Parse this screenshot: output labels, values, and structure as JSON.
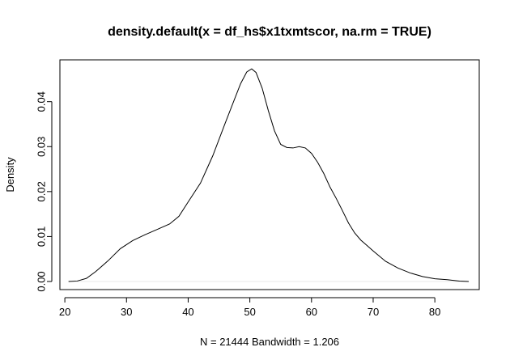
{
  "chart_data": {
    "type": "line",
    "title": "density.default(x = df_hs$x1txmtscor, na.rm = TRUE)",
    "xlabel": "N = 21444   Bandwidth = 1.206",
    "ylabel": "Density",
    "xlim": [
      19.2,
      87.2
    ],
    "ylim": [
      -0.0018,
      0.0493
    ],
    "x_ticks": [
      20,
      30,
      40,
      50,
      60,
      70,
      80
    ],
    "y_ticks": [
      0.0,
      0.01,
      0.02,
      0.03,
      0.04
    ],
    "x_tick_labels": [
      "20",
      "30",
      "40",
      "50",
      "60",
      "70",
      "80"
    ],
    "y_tick_labels": [
      "0.00",
      "0.01",
      "0.02",
      "0.03",
      "0.04"
    ],
    "grid": false,
    "legend": "none",
    "series": [
      {
        "x": [
          20.6,
          22.0,
          23.5,
          25.0,
          27.0,
          29.0,
          31.0,
          33.0,
          35.0,
          37.0,
          38.5,
          40.0,
          42.0,
          44.0,
          46.0,
          47.5,
          48.5,
          49.5,
          50.3,
          51.0,
          52.0,
          53.0,
          54.0,
          55.0,
          56.0,
          57.0,
          58.0,
          59.0,
          60.0,
          61.0,
          62.0,
          63.0,
          64.0,
          65.0,
          66.0,
          67.0,
          68.0,
          69.0,
          70.0,
          72.0,
          74.0,
          76.0,
          78.0,
          80.0,
          82.0,
          84.0,
          85.5
        ],
        "y": [
          0.0,
          0.0001,
          0.0007,
          0.0022,
          0.0046,
          0.0073,
          0.0091,
          0.0104,
          0.0116,
          0.0128,
          0.0145,
          0.0177,
          0.0219,
          0.028,
          0.0352,
          0.0405,
          0.044,
          0.0466,
          0.0473,
          0.0465,
          0.043,
          0.038,
          0.0335,
          0.0305,
          0.0298,
          0.0297,
          0.03,
          0.0297,
          0.0285,
          0.0265,
          0.024,
          0.021,
          0.0185,
          0.0158,
          0.013,
          0.0108,
          0.0092,
          0.008,
          0.0068,
          0.0045,
          0.003,
          0.0019,
          0.0011,
          0.0006,
          0.0004,
          0.0001,
          0.0
        ]
      }
    ]
  }
}
